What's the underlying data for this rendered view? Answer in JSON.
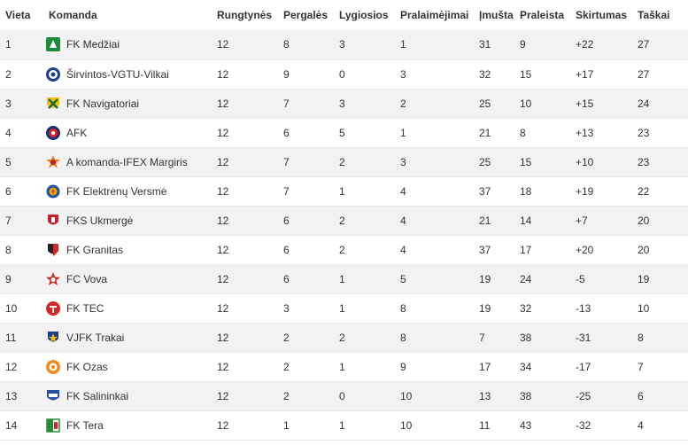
{
  "table": {
    "headers": [
      "Vieta",
      "Komanda",
      "Rungtynės",
      "Pergalės",
      "Lygiosios",
      "Pralaimėjimai",
      "Įmušta",
      "Praleista",
      "Skirtumas",
      "Taškai"
    ],
    "rows": [
      {
        "pos": "1",
        "team": "FK Medžiai",
        "crest_icon": "fk-medziai-crest-icon",
        "played": "12",
        "won": "8",
        "drawn": "3",
        "lost": "1",
        "gf": "31",
        "ga": "9",
        "gd": "+22",
        "pts": "27"
      },
      {
        "pos": "2",
        "team": "Širvintos-VGTU-Vilkai",
        "crest_icon": "sirvintos-vgtu-vilkai-crest-icon",
        "played": "12",
        "won": "9",
        "drawn": "0",
        "lost": "3",
        "gf": "32",
        "ga": "15",
        "gd": "+17",
        "pts": "27"
      },
      {
        "pos": "3",
        "team": "FK Navigatoriai",
        "crest_icon": "fk-navigatoriai-crest-icon",
        "played": "12",
        "won": "7",
        "drawn": "3",
        "lost": "2",
        "gf": "25",
        "ga": "10",
        "gd": "+15",
        "pts": "24"
      },
      {
        "pos": "4",
        "team": "AFK",
        "crest_icon": "afk-crest-icon",
        "played": "12",
        "won": "6",
        "drawn": "5",
        "lost": "1",
        "gf": "21",
        "ga": "8",
        "gd": "+13",
        "pts": "23"
      },
      {
        "pos": "5",
        "team": "A komanda-IFEX Margiris",
        "crest_icon": "a-komanda-ifex-margiris-crest-icon",
        "played": "12",
        "won": "7",
        "drawn": "2",
        "lost": "3",
        "gf": "25",
        "ga": "15",
        "gd": "+10",
        "pts": "23"
      },
      {
        "pos": "6",
        "team": "FK Elektrėnų Versmė",
        "crest_icon": "fk-elektrenu-versme-crest-icon",
        "played": "12",
        "won": "7",
        "drawn": "1",
        "lost": "4",
        "gf": "37",
        "ga": "18",
        "gd": "+19",
        "pts": "22"
      },
      {
        "pos": "7",
        "team": "FKS Ukmergė",
        "crest_icon": "fks-ukmerge-crest-icon",
        "played": "12",
        "won": "6",
        "drawn": "2",
        "lost": "4",
        "gf": "21",
        "ga": "14",
        "gd": "+7",
        "pts": "20"
      },
      {
        "pos": "8",
        "team": "FK Granitas",
        "crest_icon": "fk-granitas-crest-icon",
        "played": "12",
        "won": "6",
        "drawn": "2",
        "lost": "4",
        "gf": "37",
        "ga": "17",
        "gd": "+20",
        "pts": "20"
      },
      {
        "pos": "9",
        "team": "FC Vova",
        "crest_icon": "fc-vova-crest-icon",
        "played": "12",
        "won": "6",
        "drawn": "1",
        "lost": "5",
        "gf": "19",
        "ga": "24",
        "gd": "-5",
        "pts": "19"
      },
      {
        "pos": "10",
        "team": "FK TEC",
        "crest_icon": "fk-tec-crest-icon",
        "played": "12",
        "won": "3",
        "drawn": "1",
        "lost": "8",
        "gf": "19",
        "ga": "32",
        "gd": "-13",
        "pts": "10"
      },
      {
        "pos": "11",
        "team": "VJFK Trakai",
        "crest_icon": "vjfk-trakai-crest-icon",
        "played": "12",
        "won": "2",
        "drawn": "2",
        "lost": "8",
        "gf": "7",
        "ga": "38",
        "gd": "-31",
        "pts": "8"
      },
      {
        "pos": "12",
        "team": "FK Ozas",
        "crest_icon": "fk-ozas-crest-icon",
        "played": "12",
        "won": "2",
        "drawn": "1",
        "lost": "9",
        "gf": "17",
        "ga": "34",
        "gd": "-17",
        "pts": "7"
      },
      {
        "pos": "13",
        "team": "FK Salininkai",
        "crest_icon": "fk-salininkai-crest-icon",
        "played": "12",
        "won": "2",
        "drawn": "0",
        "lost": "10",
        "gf": "13",
        "ga": "38",
        "gd": "-25",
        "pts": "6"
      },
      {
        "pos": "14",
        "team": "FK Tera",
        "crest_icon": "fk-tera-crest-icon",
        "played": "12",
        "won": "1",
        "drawn": "1",
        "lost": "10",
        "gf": "11",
        "ga": "43",
        "gd": "-32",
        "pts": "4"
      }
    ]
  },
  "colors": {
    "row_stripe": "#f2f2f2",
    "row_plain": "#ffffff",
    "text": "#333333"
  }
}
